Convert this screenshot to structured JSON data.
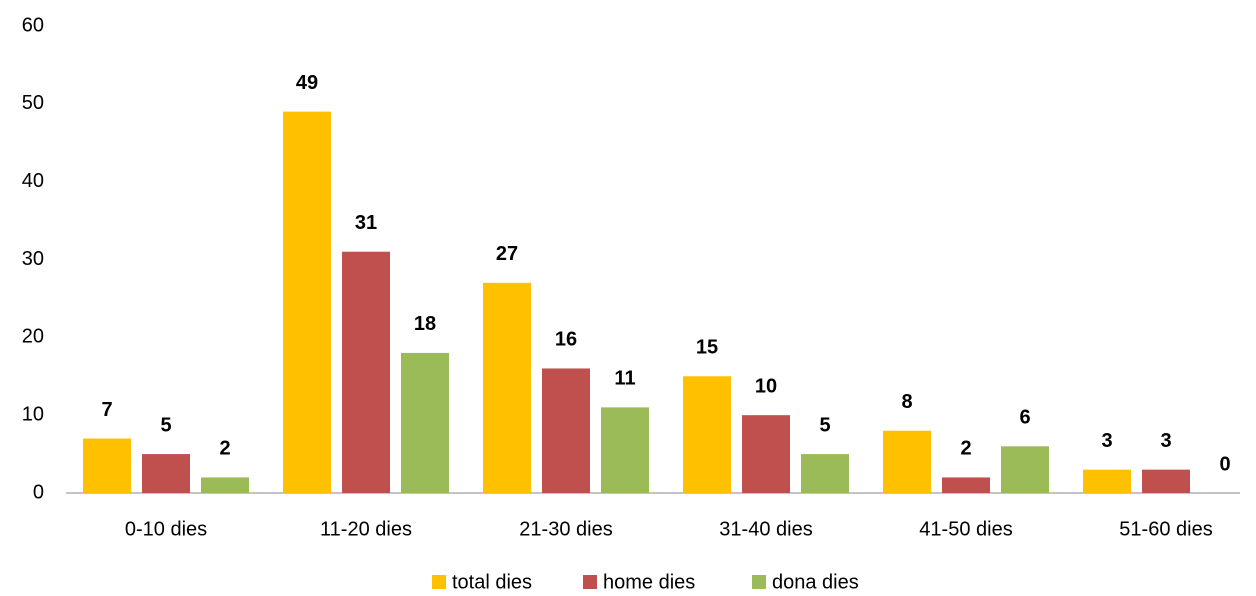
{
  "chart_data": {
    "type": "bar",
    "categories": [
      "0-10 dies",
      "11-20 dies",
      "21-30 dies",
      "31-40 dies",
      "41-50 dies",
      "51-60 dies"
    ],
    "series": [
      {
        "name": "total dies",
        "color": "#ffc000",
        "values": [
          7,
          49,
          27,
          15,
          8,
          3
        ]
      },
      {
        "name": "home dies",
        "color": "#c0504d",
        "values": [
          5,
          31,
          16,
          10,
          2,
          3
        ]
      },
      {
        "name": "dona dies",
        "color": "#9bbb59",
        "values": [
          2,
          18,
          11,
          5,
          6,
          0
        ]
      }
    ],
    "ylim": [
      0,
      60
    ],
    "yticks": [
      0,
      10,
      20,
      30,
      40,
      50,
      60
    ],
    "grid": false,
    "legend": "bottom"
  }
}
